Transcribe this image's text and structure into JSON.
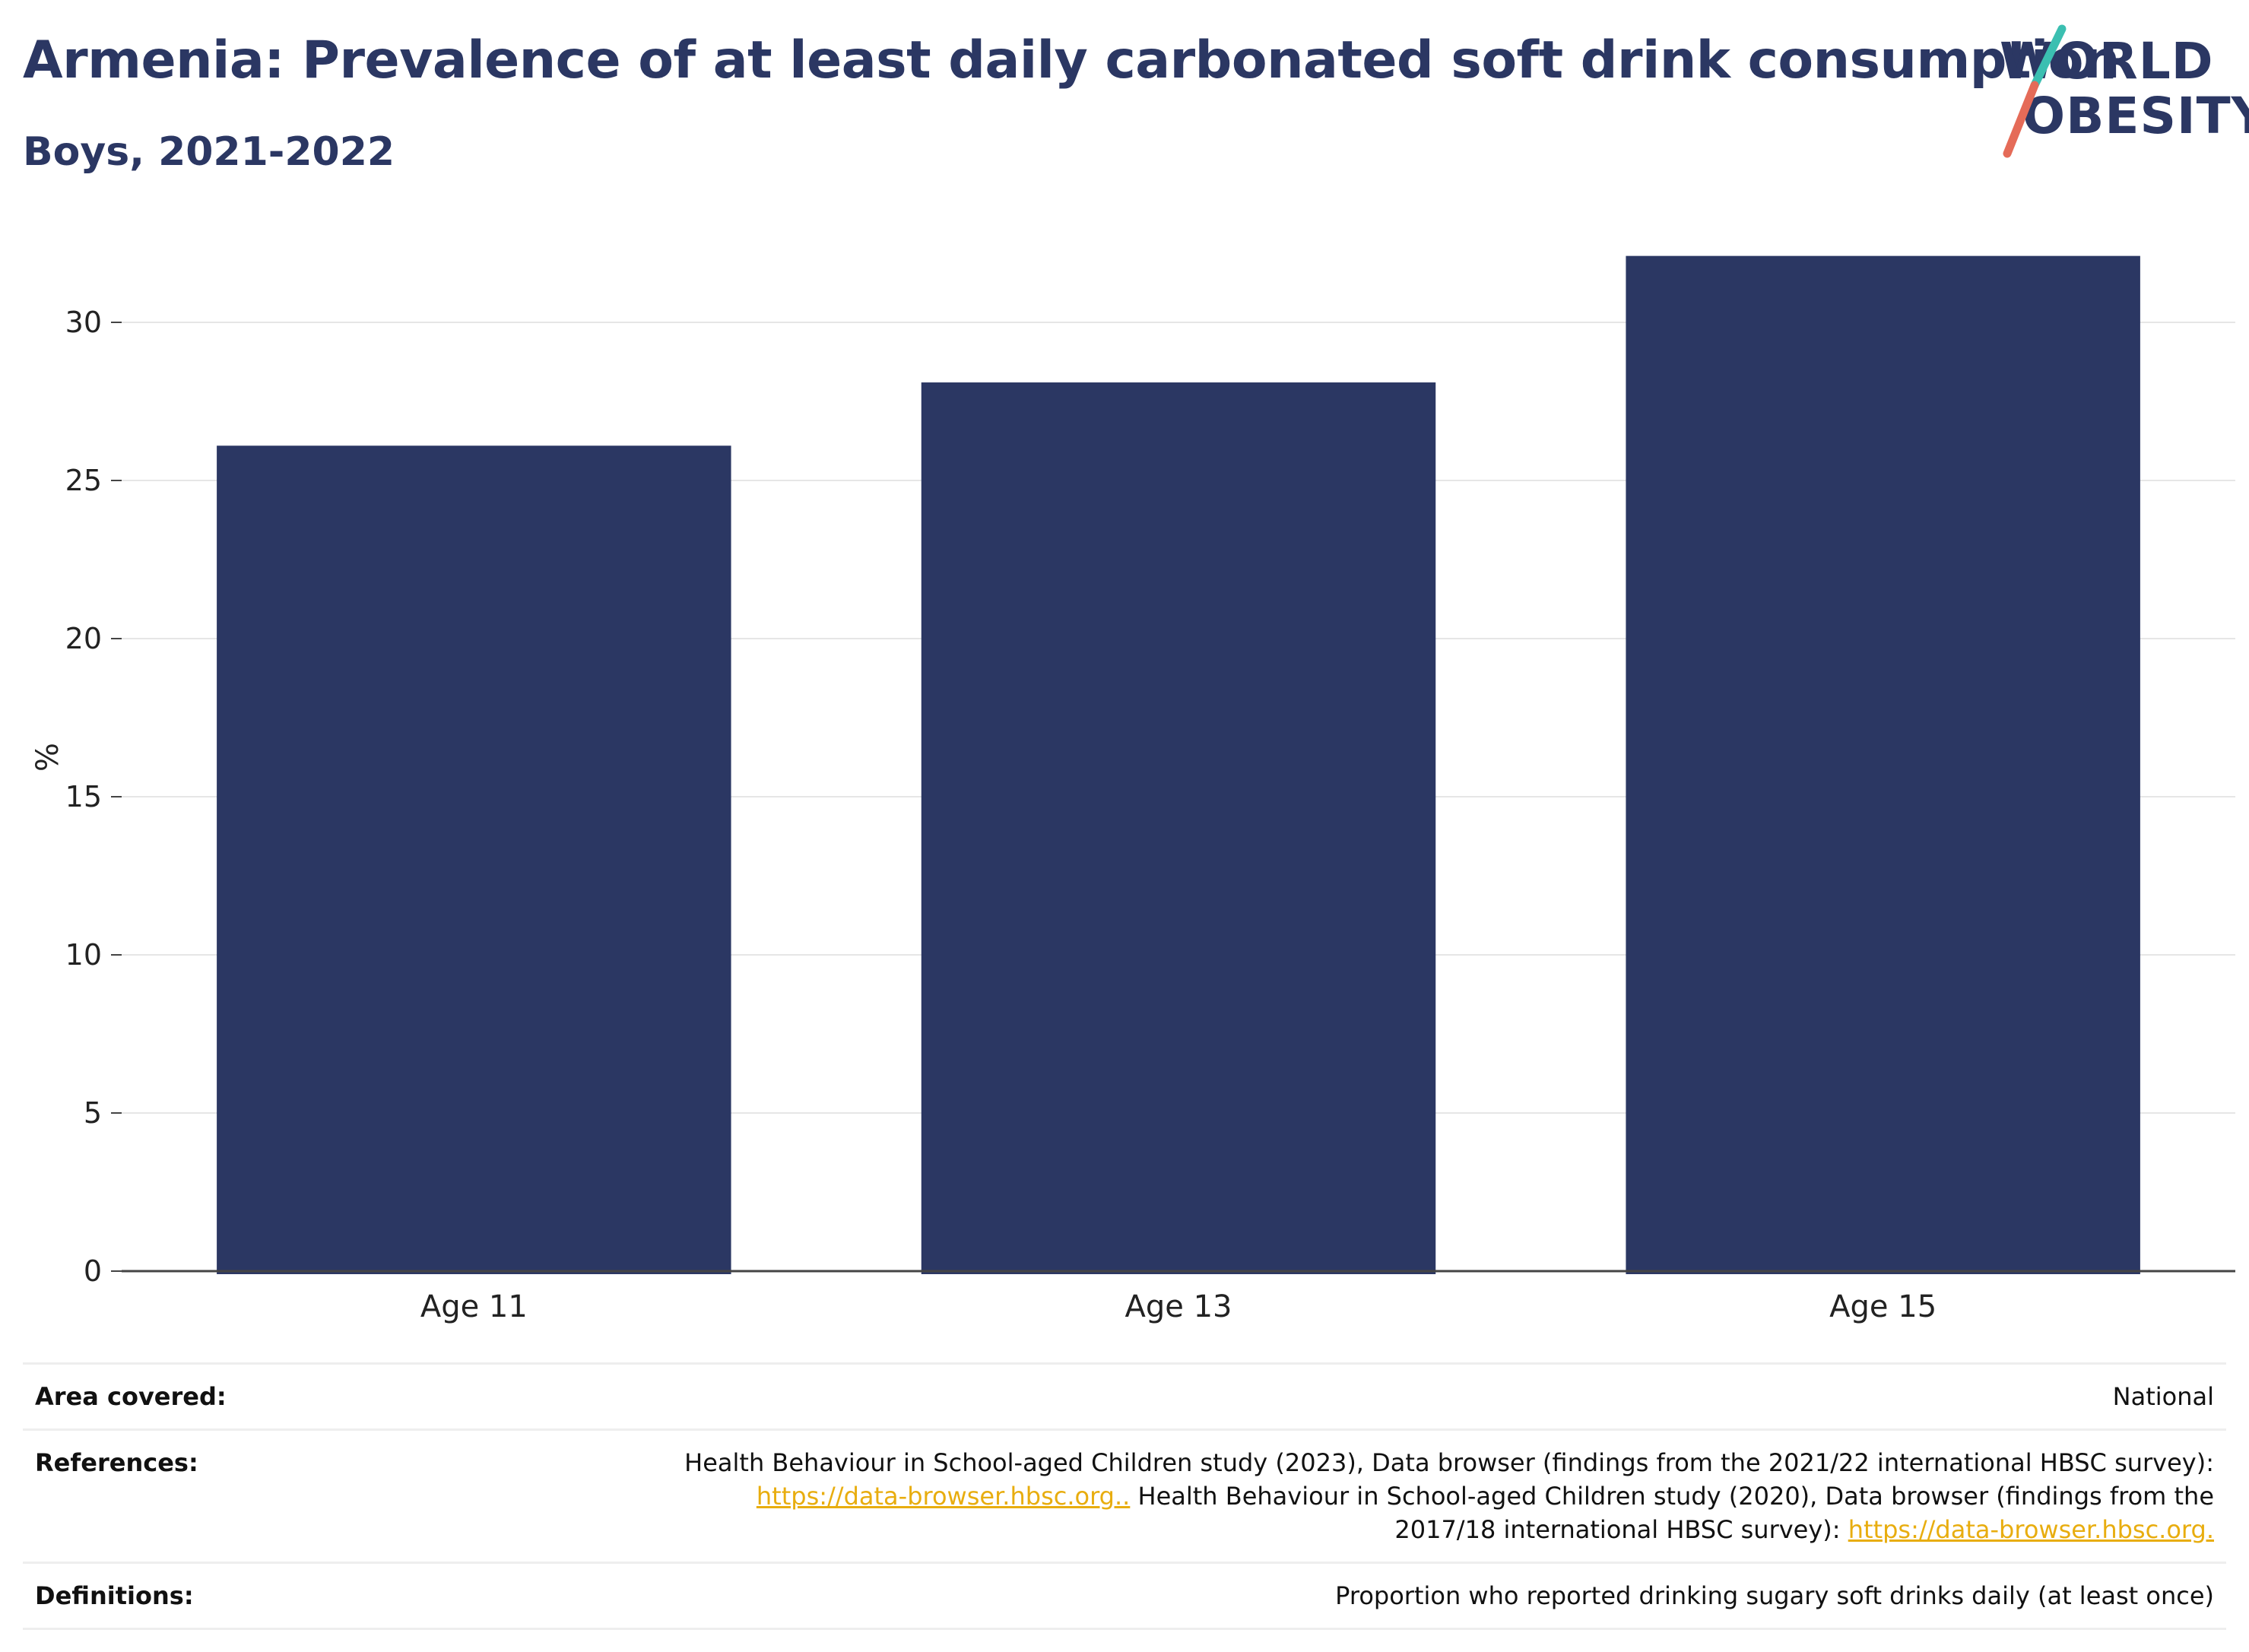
{
  "header": {
    "title": "Armenia: Prevalence of at least daily carbonated soft drink consumption",
    "subtitle": "Boys, 2021-2022"
  },
  "logo": {
    "line1": "WORLD",
    "line2": "OBESITY",
    "colors": {
      "text": "#2b3763",
      "slash_top": "#3bbfb1",
      "slash_bottom": "#e56b58"
    }
  },
  "chart_data": {
    "type": "bar",
    "categories": [
      "Age 11",
      "Age 13",
      "Age 15"
    ],
    "values": [
      26.1,
      28.1,
      32.1
    ],
    "title": "Armenia: Prevalence of at least daily carbonated soft drink consumption",
    "subtitle": "Boys, 2021-2022",
    "xlabel": "",
    "ylabel": "%",
    "ylim": [
      0,
      32.5
    ],
    "yticks": [
      0,
      5,
      10,
      15,
      20,
      25,
      30
    ],
    "grid": true,
    "legend": "none",
    "bar_color": "#2b3763"
  },
  "info": {
    "area": {
      "label": "Area covered:",
      "value": "National"
    },
    "references": {
      "label": "References:",
      "text1": "Health Behaviour in School-aged Children study (2023), Data browser (findings from the 2021/22 international HBSC survey):",
      "link1": "https://data-browser.hbsc.org..",
      "text2": " Health Behaviour in School-aged Children study (2020), Data browser (findings from the 2017/18 international HBSC survey): ",
      "link2": "https://data-browser.hbsc.org."
    },
    "definitions": {
      "label": "Definitions:",
      "value": "Proportion who reported drinking sugary soft drinks daily (at least once)"
    }
  }
}
